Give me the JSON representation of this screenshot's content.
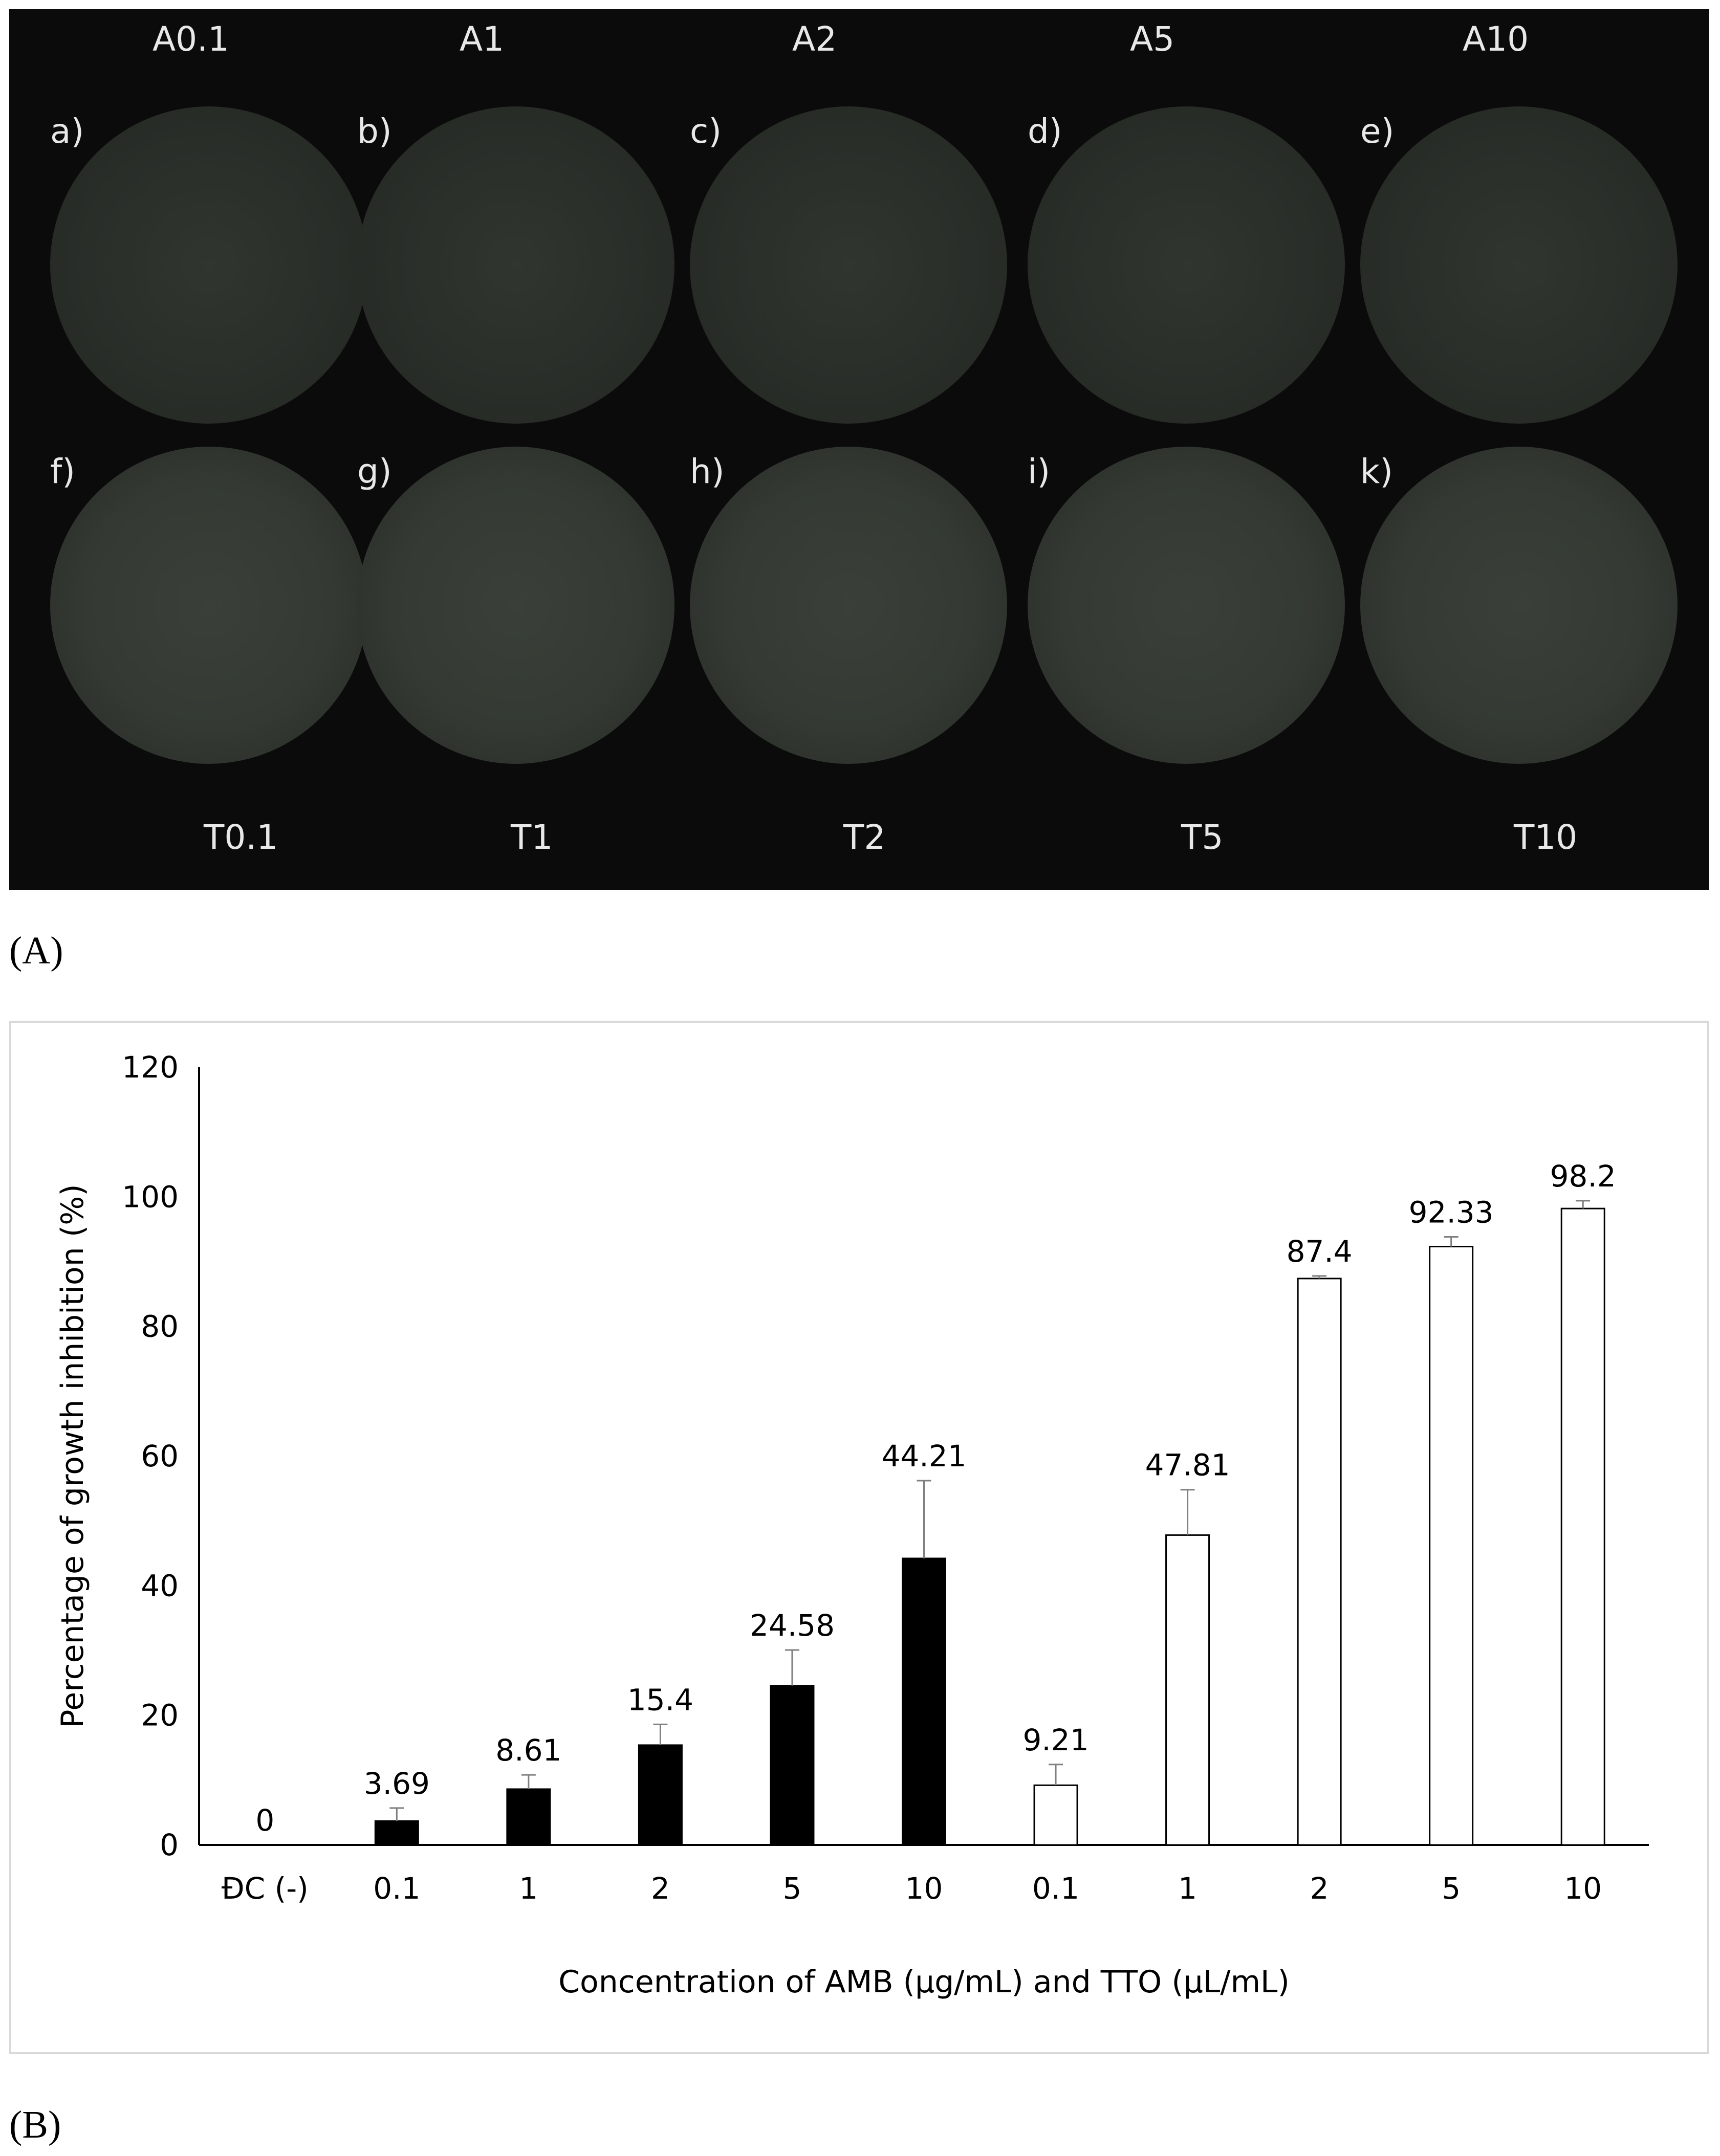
{
  "panel_a": {
    "caption": "(A)",
    "top_labels": [
      "A0.1",
      "A1",
      "A2",
      "A5",
      "A10"
    ],
    "bottom_labels": [
      "T0.1",
      "T1",
      "T2",
      "T5",
      "T10"
    ],
    "plate_letters_top": [
      "a)",
      "b)",
      "c)",
      "d)",
      "e)"
    ],
    "plate_letters_bottom": [
      "f)",
      "g)",
      "h)",
      "i)",
      "k)"
    ]
  },
  "panel_b": {
    "caption": "(B)"
  },
  "chart_data": {
    "type": "bar",
    "categories": [
      "ĐC (-)",
      "0.1",
      "1",
      "2",
      "5",
      "10",
      "0.1",
      "1",
      "2",
      "5",
      "10"
    ],
    "values": [
      0,
      3.69,
      8.61,
      15.4,
      24.58,
      44.21,
      9.21,
      47.81,
      87.4,
      92.33,
      98.2
    ],
    "data_labels": [
      "0",
      "3.69",
      "8.61",
      "15.4",
      "24.58",
      "44.21",
      "9.21",
      "47.81",
      "87.4",
      "92.33",
      "98.2"
    ],
    "errors": [
      0,
      2.0,
      2.2,
      3.2,
      5.5,
      12.0,
      3.2,
      7.0,
      0.4,
      1.5,
      1.2
    ],
    "bar_fill": [
      "none",
      "#000000",
      "#000000",
      "#000000",
      "#000000",
      "#000000",
      "#ffffff",
      "#ffffff",
      "#ffffff",
      "#ffffff",
      "#ffffff"
    ],
    "xlabel": "Concentration of AMB (µg/mL) and TTO (µL/mL)",
    "ylabel": "Percentage of growth inhibition (%)",
    "ylim": [
      0,
      120
    ],
    "yticks": [
      "0",
      "20",
      "40",
      "60",
      "80",
      "100",
      "120"
    ],
    "grid": false
  }
}
